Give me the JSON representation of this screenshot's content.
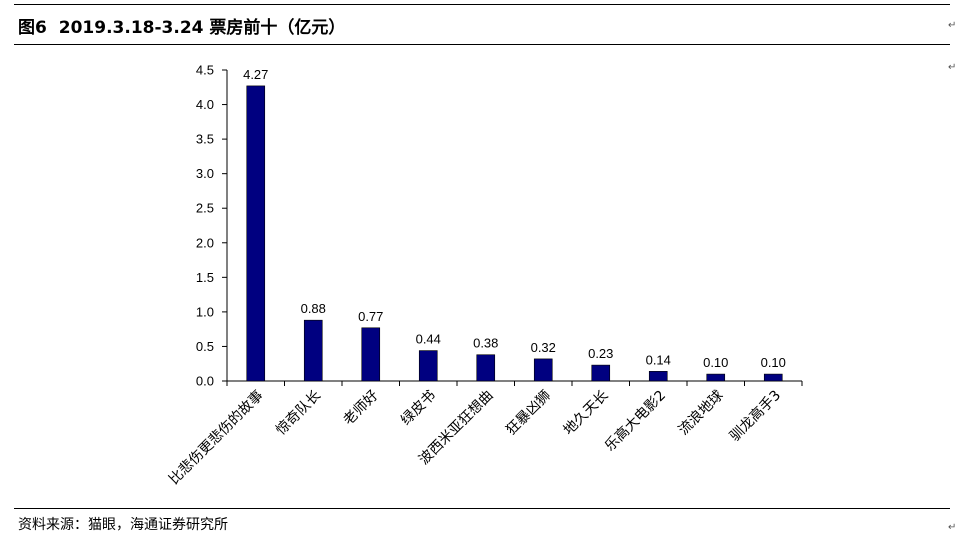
{
  "figure": {
    "number": "图6",
    "title": "2019.3.18-3.24 票房前十（亿元）"
  },
  "source_note": "资料来源：猫眼，海通证券研究所",
  "colors": {
    "bar": "#000080",
    "axis": "#000000"
  },
  "chart_data": {
    "type": "bar",
    "title": "",
    "xlabel": "",
    "ylabel": "",
    "ylim": [
      0,
      4.5
    ],
    "ytick_step": 0.5,
    "ytick_labels": [
      "0.0",
      "0.5",
      "1.0",
      "1.5",
      "2.0",
      "2.5",
      "3.0",
      "3.5",
      "4.0",
      "4.5"
    ],
    "grid": false,
    "legend": "none",
    "categories": [
      "比悲伤更悲伤的故事",
      "惊奇队长",
      "老师好",
      "绿皮书",
      "波西米亚狂想曲",
      "狂暴凶狮",
      "地久天长",
      "乐高大电影2",
      "流浪地球",
      "驯龙高手3"
    ],
    "values": [
      4.27,
      0.88,
      0.77,
      0.44,
      0.38,
      0.32,
      0.23,
      0.14,
      0.1,
      0.1
    ],
    "value_labels": [
      "4.27",
      "0.88",
      "0.77",
      "0.44",
      "0.38",
      "0.32",
      "0.23",
      "0.14",
      "0.10",
      "0.10"
    ]
  }
}
